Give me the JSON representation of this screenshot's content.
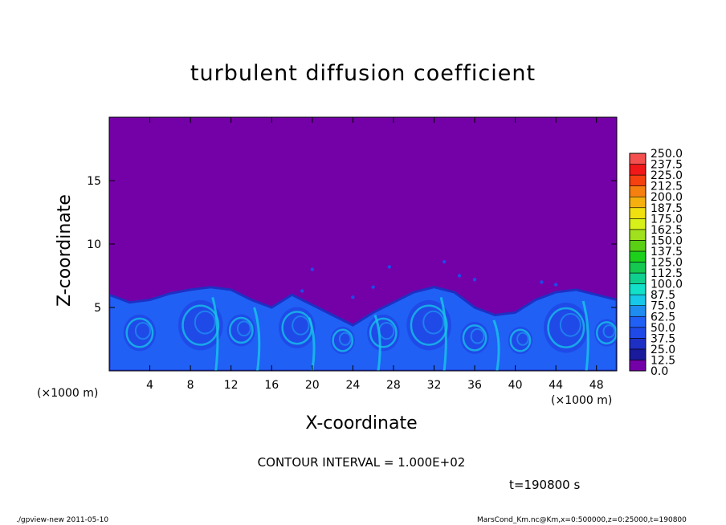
{
  "chart_data": {
    "type": "heatmap",
    "title": "turbulent diffusion coefficient",
    "xlabel": "X-coordinate",
    "ylabel": "Z-coordinate",
    "x_unit_label": "(×1000 m)",
    "xlim": [
      0,
      50
    ],
    "ylim": [
      0,
      20
    ],
    "x_ticks": [
      4,
      8,
      12,
      16,
      20,
      24,
      28,
      32,
      36,
      40,
      44,
      48
    ],
    "y_ticks": [
      5,
      10,
      15
    ],
    "colorbar": {
      "levels": [
        "0.0",
        "12.5",
        "25.0",
        "37.5",
        "50.0",
        "62.5",
        "75.0",
        "87.5",
        "100.0",
        "112.5",
        "125.0",
        "137.5",
        "150.0",
        "162.5",
        "175.0",
        "187.5",
        "200.0",
        "212.5",
        "225.0",
        "237.5",
        "250.0"
      ],
      "colors": [
        "#7400a8",
        "#1a1a9c",
        "#1e2fc4",
        "#1f4ae8",
        "#2060f5",
        "#1f8cf0",
        "#17c8e8",
        "#12e0c8",
        "#10d090",
        "#14c850",
        "#1cd01c",
        "#5ad014",
        "#a0e01c",
        "#d8f01a",
        "#f0e010",
        "#f5b010",
        "#f58010",
        "#f54010",
        "#f01818",
        "#f55050",
        "#f58a8a"
      ]
    },
    "field_summary": "convective boundary layer of elevated diffusion (~25-75) below z≈4-6 km; near 0 above",
    "boundary_layer_top_km": [
      [
        0,
        6.0
      ],
      [
        2,
        5.4
      ],
      [
        4,
        5.6
      ],
      [
        6,
        6.1
      ],
      [
        8,
        6.4
      ],
      [
        10,
        6.6
      ],
      [
        12,
        6.4
      ],
      [
        14,
        5.6
      ],
      [
        16,
        5.0
      ],
      [
        18,
        6.0
      ],
      [
        20,
        5.2
      ],
      [
        22,
        4.4
      ],
      [
        24,
        3.6
      ],
      [
        26,
        4.6
      ],
      [
        28,
        5.4
      ],
      [
        30,
        6.2
      ],
      [
        32,
        6.6
      ],
      [
        34,
        6.2
      ],
      [
        36,
        5.0
      ],
      [
        38,
        4.4
      ],
      [
        40,
        4.6
      ],
      [
        42,
        5.6
      ],
      [
        44,
        6.2
      ],
      [
        46,
        6.4
      ],
      [
        48,
        6.0
      ],
      [
        50,
        5.6
      ]
    ]
  },
  "labels": {
    "title": "turbulent diffusion coefficient",
    "x_unit_left": "(×1000 m)",
    "x_unit_right": "(×1000 m)",
    "xlabel": "X-coordinate",
    "ylabel": "Z-coordinate",
    "contour_interval": "CONTOUR INTERVAL = 1.000E+02",
    "time": "t=190800 s",
    "footer_left": "./gpview-new   2011-05-10",
    "footer_right": "MarsCond_Km.nc@Km,x=0:500000,z=0:25000,t=190800"
  }
}
